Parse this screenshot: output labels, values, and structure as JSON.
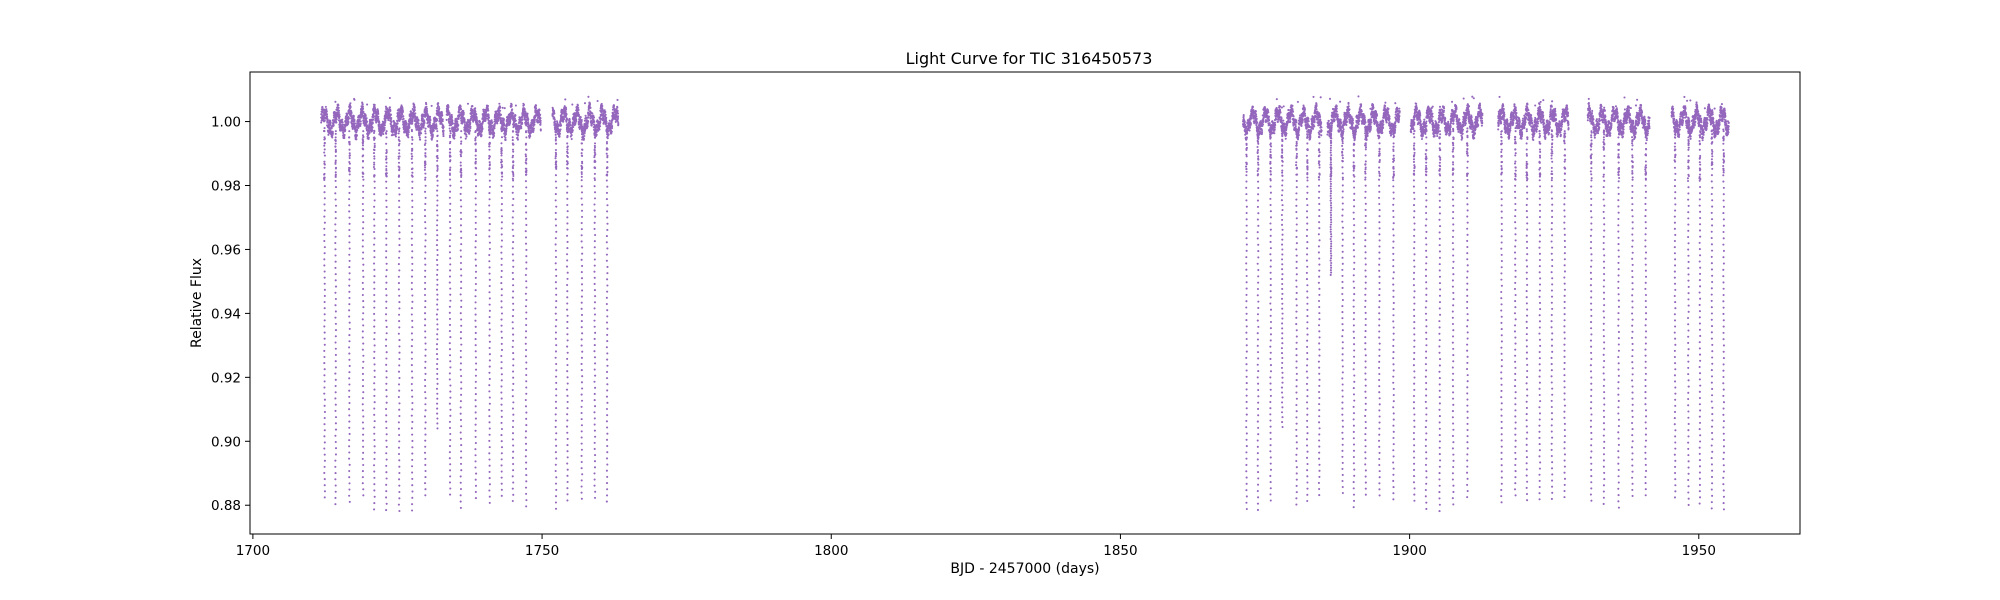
{
  "chart_data": {
    "type": "scatter",
    "title": "Light Curve for TIC 316450573",
    "xlabel": "BJD - 2457000 (days)",
    "ylabel": "Relative Flux",
    "xlim": [
      1699.5,
      1967.5
    ],
    "ylim": [
      0.871,
      1.0155
    ],
    "xticks": [
      1700,
      1750,
      1800,
      1850,
      1900,
      1950
    ],
    "yticks": [
      0.88,
      0.9,
      0.92,
      0.94,
      0.96,
      0.98,
      1.0
    ],
    "grid": false,
    "marker_color": "#9467bd",
    "baseline_flux": 1.0,
    "eclipse": {
      "depth_min_flux": 0.878,
      "ingress_flux": 0.982,
      "spacing_days": 2.2
    },
    "segments": [
      {
        "x": [
          1711.8,
          1733.0
        ]
      },
      {
        "x": [
          1733.5,
          1749.8
        ]
      },
      {
        "x": [
          1751.8,
          1763.2
        ]
      },
      {
        "x": [
          1871.2,
          1884.8
        ]
      },
      {
        "x": [
          1885.8,
          1898.3
        ]
      },
      {
        "x": [
          1900.2,
          1912.6
        ]
      },
      {
        "x": [
          1915.3,
          1927.5
        ]
      },
      {
        "x": [
          1930.8,
          1941.5
        ]
      },
      {
        "x": [
          1945.3,
          1955.2
        ]
      }
    ]
  }
}
